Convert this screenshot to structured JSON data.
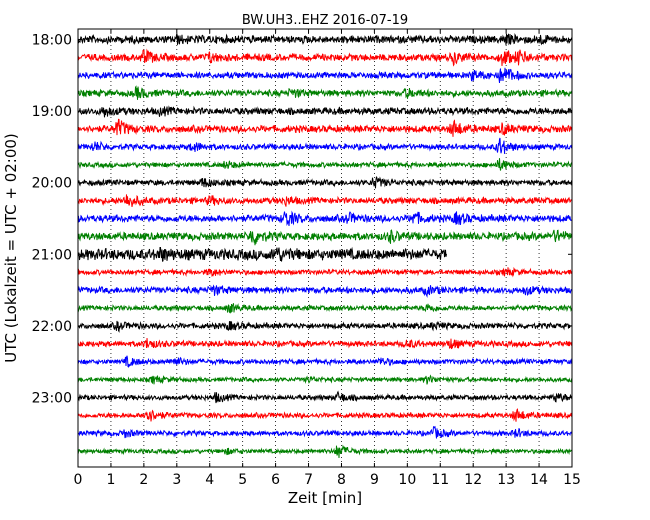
{
  "chart_data": {
    "type": "line",
    "title": "BW.UH3..EHZ 2016-07-19",
    "xlabel": "Zeit  [min]",
    "ylabel": "UTC (Lokalzeit = UTC + 02:00)",
    "xlim": [
      0,
      15
    ],
    "x_ticks": [
      "0",
      "1",
      "2",
      "3",
      "4",
      "5",
      "6",
      "7",
      "8",
      "9",
      "10",
      "11",
      "12",
      "13",
      "14",
      "15"
    ],
    "y_ticks": [
      "18:00",
      "19:00",
      "20:00",
      "21:00",
      "22:00",
      "23:00"
    ],
    "grid": {
      "x": true,
      "y": false
    },
    "trace_colors": [
      "#000000",
      "#ff0000",
      "#0000ff",
      "#008000"
    ],
    "traces": [
      {
        "start": "18:00",
        "amp": 0.55,
        "events": [
          [
            3.0,
            0.35
          ],
          [
            13.0,
            0.4
          ],
          [
            14.0,
            0.35
          ]
        ]
      },
      {
        "start": "18:15",
        "amp": 0.5,
        "events": [
          [
            2.0,
            0.7
          ],
          [
            4.0,
            0.5
          ],
          [
            11.4,
            0.6
          ],
          [
            12.9,
            0.9
          ],
          [
            13.4,
            0.6
          ]
        ]
      },
      {
        "start": "18:30",
        "amp": 0.45,
        "events": [
          [
            12.0,
            0.5
          ],
          [
            12.8,
            0.6
          ],
          [
            13.0,
            0.5
          ]
        ]
      },
      {
        "start": "18:45",
        "amp": 0.45,
        "events": [
          [
            1.8,
            0.6
          ],
          [
            6.5,
            0.4
          ],
          [
            10.0,
            0.4
          ]
        ]
      },
      {
        "start": "19:00",
        "amp": 0.5,
        "events": [
          [
            0.8,
            0.5
          ],
          [
            2.5,
            0.3
          ]
        ]
      },
      {
        "start": "19:15",
        "amp": 0.5,
        "events": [
          [
            1.2,
            1.0
          ],
          [
            11.4,
            0.9
          ],
          [
            12.9,
            0.5
          ]
        ]
      },
      {
        "start": "19:30",
        "amp": 0.4,
        "events": [
          [
            0.5,
            0.5
          ],
          [
            3.5,
            0.5
          ],
          [
            12.8,
            1.0
          ]
        ]
      },
      {
        "start": "19:45",
        "amp": 0.35,
        "events": [
          [
            4.5,
            0.4
          ],
          [
            12.8,
            0.6
          ]
        ]
      },
      {
        "start": "20:00",
        "amp": 0.4,
        "events": [
          [
            3.8,
            0.5
          ],
          [
            9.0,
            0.6
          ]
        ]
      },
      {
        "start": "20:15",
        "amp": 0.45,
        "events": [
          [
            1.5,
            0.8
          ],
          [
            4.0,
            0.4
          ],
          [
            6.3,
            0.4
          ]
        ]
      },
      {
        "start": "20:30",
        "amp": 0.5,
        "events": [
          [
            6.3,
            0.9
          ],
          [
            8.2,
            0.5
          ],
          [
            10.2,
            0.6
          ],
          [
            11.5,
            0.6
          ]
        ]
      },
      {
        "start": "20:45",
        "amp": 0.55,
        "events": [
          [
            5.3,
            0.9
          ],
          [
            9.5,
            0.5
          ],
          [
            14.5,
            0.5
          ]
        ]
      },
      {
        "start": "21:00",
        "amp": 0.8,
        "events": [
          [
            2.5,
            0.5
          ],
          [
            6.0,
            0.6
          ]
        ],
        "end": 11.2
      },
      {
        "start": "21:15",
        "amp": 0.35,
        "events": [
          [
            4.0,
            0.4
          ],
          [
            13.0,
            0.4
          ]
        ]
      },
      {
        "start": "21:30",
        "amp": 0.45,
        "events": [
          [
            4.1,
            0.5
          ],
          [
            10.6,
            0.4
          ],
          [
            13.6,
            0.4
          ]
        ]
      },
      {
        "start": "21:45",
        "amp": 0.35,
        "events": [
          [
            4.6,
            0.5
          ],
          [
            10.6,
            0.4
          ]
        ]
      },
      {
        "start": "22:00",
        "amp": 0.4,
        "events": [
          [
            1.2,
            0.4
          ],
          [
            4.6,
            0.4
          ],
          [
            10.8,
            0.3
          ]
        ]
      },
      {
        "start": "22:15",
        "amp": 0.4,
        "events": [
          [
            2.1,
            0.5
          ],
          [
            10.0,
            0.4
          ],
          [
            11.3,
            0.5
          ]
        ]
      },
      {
        "start": "22:30",
        "amp": 0.35,
        "events": [
          [
            1.5,
            0.5
          ],
          [
            2.9,
            0.5
          ],
          [
            9.2,
            0.4
          ]
        ]
      },
      {
        "start": "22:45",
        "amp": 0.3,
        "events": [
          [
            2.3,
            0.4
          ],
          [
            7.0,
            0.3
          ],
          [
            10.6,
            0.4
          ]
        ]
      },
      {
        "start": "23:00",
        "amp": 0.35,
        "events": [
          [
            4.2,
            0.5
          ],
          [
            7.9,
            0.5
          ],
          [
            14.5,
            0.5
          ]
        ]
      },
      {
        "start": "23:15",
        "amp": 0.35,
        "events": [
          [
            2.1,
            0.9
          ],
          [
            13.3,
            0.7
          ]
        ]
      },
      {
        "start": "23:30",
        "amp": 0.35,
        "events": [
          [
            1.4,
            0.4
          ],
          [
            10.8,
            0.6
          ],
          [
            13.3,
            0.4
          ]
        ]
      },
      {
        "start": "23:45",
        "amp": 0.3,
        "events": [
          [
            7.9,
            0.8
          ],
          [
            4.5,
            0.3
          ]
        ]
      }
    ]
  }
}
